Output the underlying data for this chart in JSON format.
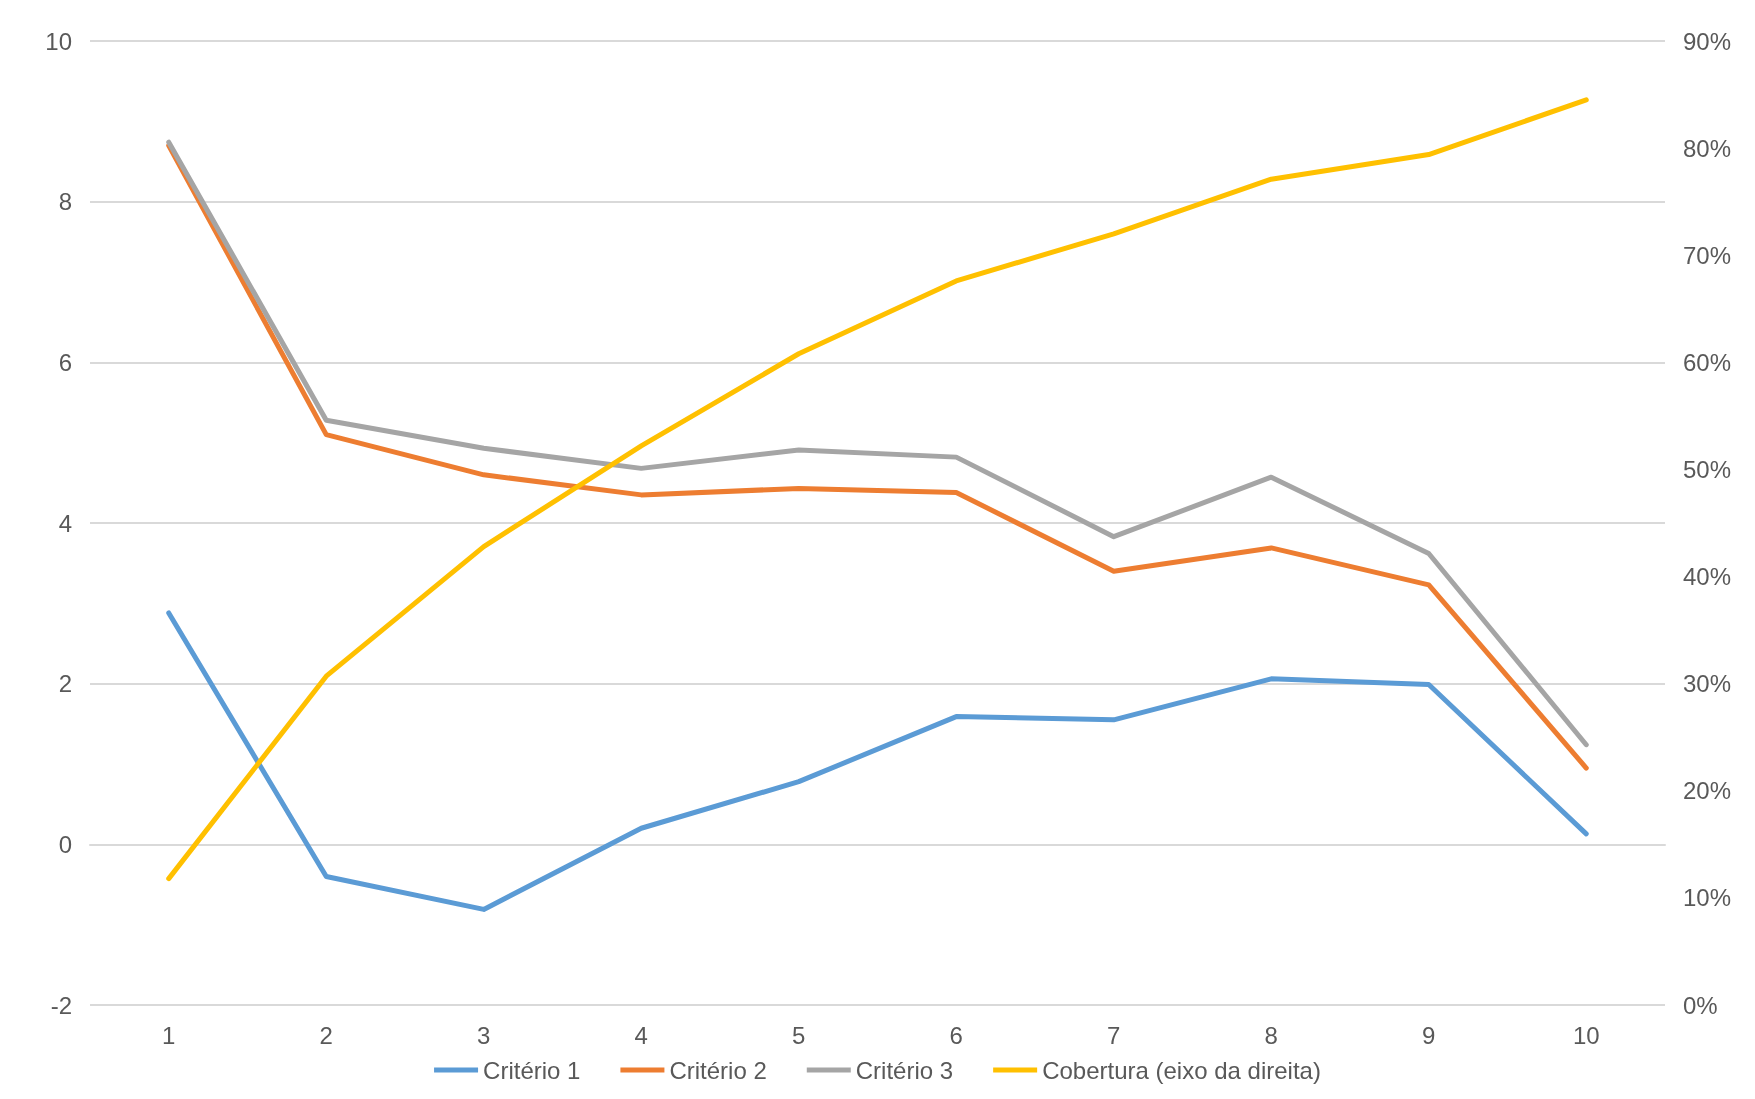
{
  "chart_data": {
    "type": "line",
    "categories": [
      "1",
      "2",
      "3",
      "4",
      "5",
      "6",
      "7",
      "8",
      "9",
      "10"
    ],
    "series": [
      {
        "name": "Critério 1",
        "color": "#5b9bd5",
        "values": [
          2.88,
          -0.4,
          -0.81,
          0.2,
          0.78,
          1.59,
          1.55,
          2.06,
          1.99,
          0.13
        ]
      },
      {
        "name": "Critério 2",
        "color": "#ed7d31",
        "values": [
          8.7,
          5.1,
          4.6,
          4.35,
          4.43,
          4.38,
          3.4,
          3.69,
          3.23,
          0.95
        ]
      },
      {
        "name": "Critério 3",
        "color": "#a5a5a5",
        "values": [
          8.74,
          5.28,
          4.93,
          4.68,
          4.91,
          4.82,
          3.83,
          4.57,
          3.62,
          1.24
        ]
      },
      {
        "name": "Cobertura (eixo da direita)",
        "color": "#ffc000",
        "axis": "y2",
        "values": [
          11.8,
          30.7,
          42.8,
          52.2,
          60.8,
          67.6,
          72.0,
          77.1,
          79.4,
          84.5
        ]
      }
    ],
    "ylim": [
      -2,
      10
    ],
    "yticks": [
      -2,
      0,
      2,
      4,
      6,
      8,
      10
    ],
    "y2lim": [
      0,
      90
    ],
    "y2ticks": [
      {
        "value": 0,
        "label": "0%"
      },
      {
        "value": 10,
        "label": "10%"
      },
      {
        "value": 20,
        "label": "20%"
      },
      {
        "value": 30,
        "label": "30%"
      },
      {
        "value": 40,
        "label": "40%"
      },
      {
        "value": 50,
        "label": "50%"
      },
      {
        "value": 60,
        "label": "60%"
      },
      {
        "value": 70,
        "label": "70%"
      },
      {
        "value": 80,
        "label": "80%"
      },
      {
        "value": 90,
        "label": "90%"
      }
    ],
    "grid": "y",
    "legend": "bottom",
    "marker": "none",
    "line_style": "solid"
  }
}
